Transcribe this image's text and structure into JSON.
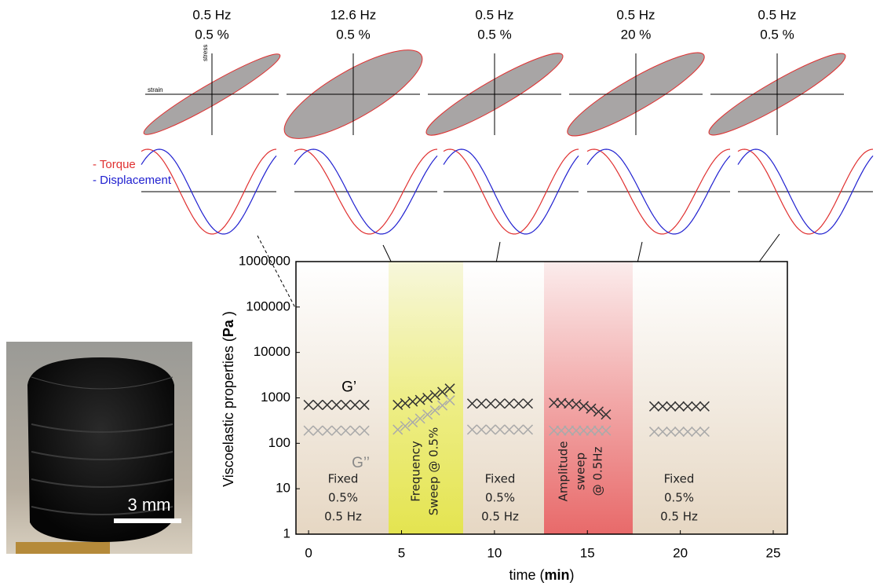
{
  "panels": [
    {
      "freq": "0.5 Hz",
      "amp": "0.5 %"
    },
    {
      "freq": "12.6 Hz",
      "amp": "0.5 %"
    },
    {
      "freq": "0.5 Hz",
      "amp": "0.5 %"
    },
    {
      "freq": "0.5 Hz",
      "amp": "20 %"
    },
    {
      "freq": "0.5 Hz",
      "amp": "0.5 %"
    }
  ],
  "lissajous_axes": {
    "x": "strain",
    "y": "stress"
  },
  "waveform_legend": [
    "- Torque",
    "- Displacement"
  ],
  "photo_scale": "3 mm",
  "chart_data": {
    "type": "scatter",
    "xlabel": [
      "time (",
      "min",
      ")"
    ],
    "ylabel": [
      "Viscoelastic properties (",
      "Pa",
      " )"
    ],
    "xlim": [
      -0.68,
      25.76
    ],
    "xticks": [
      0,
      5,
      10,
      15,
      20,
      25
    ],
    "ylim": [
      1,
      1000000
    ],
    "yticks": [
      1,
      10,
      100,
      1000,
      10000,
      100000,
      1000000
    ],
    "log_y": true,
    "series": [
      {
        "name": "G’",
        "color": "#333333",
        "x": [
          0,
          0.5,
          1,
          1.5,
          2,
          2.5,
          3,
          4.8,
          5.2,
          5.6,
          6.0,
          6.4,
          6.8,
          7.2,
          7.6,
          8.8,
          9.3,
          9.8,
          10.3,
          10.8,
          11.3,
          11.8,
          13.2,
          13.6,
          14.0,
          14.4,
          14.8,
          15.2,
          15.6,
          16.0,
          18.6,
          19.05,
          19.5,
          19.95,
          20.4,
          20.85,
          21.3
        ],
        "values": [
          700,
          700,
          700,
          700,
          700,
          700,
          700,
          700,
          760,
          830,
          900,
          1000,
          1150,
          1350,
          1600,
          750,
          750,
          750,
          750,
          750,
          750,
          750,
          780,
          770,
          750,
          720,
          660,
          580,
          500,
          430,
          650,
          650,
          650,
          650,
          650,
          650,
          650
        ]
      },
      {
        "name": "G’’",
        "color": "#aaaaaa",
        "x": [
          0,
          0.5,
          1,
          1.5,
          2,
          2.5,
          3,
          4.8,
          5.2,
          5.6,
          6.0,
          6.4,
          6.8,
          7.2,
          7.6,
          8.8,
          9.3,
          9.8,
          10.3,
          10.8,
          11.3,
          11.8,
          13.2,
          13.6,
          14.0,
          14.4,
          14.8,
          15.2,
          15.6,
          16.0,
          18.6,
          19.05,
          19.5,
          19.95,
          20.4,
          20.85,
          21.3
        ],
        "values": [
          190,
          190,
          190,
          190,
          190,
          190,
          190,
          200,
          240,
          290,
          350,
          430,
          530,
          680,
          880,
          200,
          200,
          200,
          200,
          200,
          200,
          200,
          190,
          190,
          190,
          190,
          190,
          190,
          190,
          190,
          180,
          180,
          180,
          180,
          180,
          180,
          180
        ]
      }
    ],
    "regions": [
      {
        "lines": [
          "Fixed",
          "0.5%",
          "0.5 Hz"
        ]
      },
      {
        "lines": [
          "Frequency",
          "Sweep  @ 0.5%"
        ]
      },
      {
        "lines": [
          "Fixed",
          "0.5%",
          "0.5 Hz"
        ]
      },
      {
        "lines": [
          "Amplitude",
          "sweep",
          "@ 0.5Hz"
        ]
      },
      {
        "lines": [
          "Fixed",
          "0.5%",
          "0.5 Hz"
        ]
      }
    ]
  }
}
